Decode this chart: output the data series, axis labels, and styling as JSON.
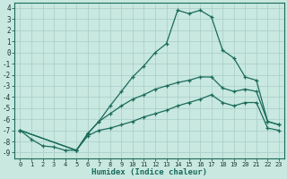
{
  "xlabel": "Humidex (Indice chaleur)",
  "bg_color": "#c8e8e0",
  "grid_color": "#a8ccc8",
  "line_color": "#1a6b5a",
  "xlim": [
    -0.5,
    23.5
  ],
  "ylim": [
    -9.5,
    4.5
  ],
  "line1_x": [
    0,
    1,
    2,
    3,
    4,
    5,
    6,
    7,
    8,
    9,
    10,
    11,
    12,
    13,
    14,
    15,
    16,
    17,
    18,
    19,
    20,
    21,
    22,
    23
  ],
  "line1_y": [
    -7.0,
    -7.8,
    -8.4,
    -8.5,
    -8.8,
    -8.8,
    -7.3,
    -6.2,
    -4.8,
    -3.5,
    -2.2,
    -1.2,
    0.0,
    0.8,
    3.8,
    3.5,
    3.8,
    3.2,
    0.2,
    -0.5,
    -2.2,
    -2.5,
    -6.2,
    -6.5
  ],
  "line2_x": [
    0,
    5,
    6,
    7,
    8,
    9,
    10,
    11,
    12,
    13,
    14,
    15,
    16,
    17,
    18,
    19,
    20,
    21,
    22,
    23
  ],
  "line2_y": [
    -7.0,
    -8.8,
    -7.3,
    -6.2,
    -5.5,
    -4.8,
    -4.2,
    -3.8,
    -3.3,
    -3.0,
    -2.7,
    -2.5,
    -2.2,
    -2.2,
    -3.2,
    -3.5,
    -3.3,
    -3.5,
    -6.2,
    -6.5
  ],
  "line3_x": [
    0,
    5,
    6,
    7,
    8,
    9,
    10,
    11,
    12,
    13,
    14,
    15,
    16,
    17,
    18,
    19,
    20,
    21,
    22,
    23
  ],
  "line3_y": [
    -7.0,
    -8.8,
    -7.5,
    -7.0,
    -6.8,
    -6.5,
    -6.2,
    -5.8,
    -5.5,
    -5.2,
    -4.8,
    -4.5,
    -4.2,
    -3.8,
    -4.5,
    -4.8,
    -4.5,
    -4.5,
    -6.8,
    -7.0
  ]
}
